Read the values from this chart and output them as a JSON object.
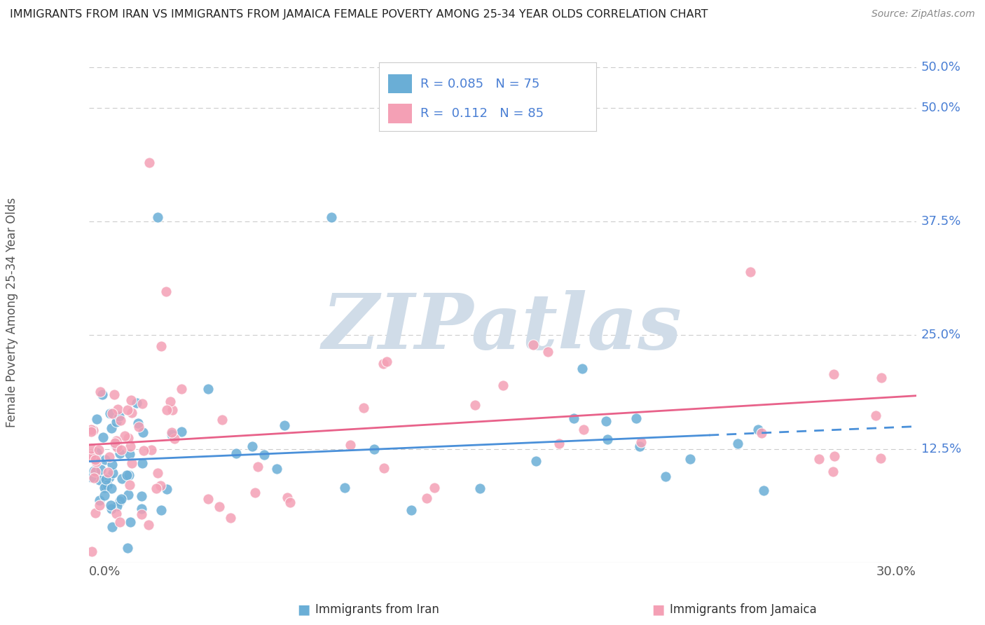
{
  "title": "IMMIGRANTS FROM IRAN VS IMMIGRANTS FROM JAMAICA FEMALE POVERTY AMONG 25-34 YEAR OLDS CORRELATION CHART",
  "source": "Source: ZipAtlas.com",
  "ylabel": "Female Poverty Among 25-34 Year Olds",
  "xlabel_iran": "Immigrants from Iran",
  "xlabel_jamaica": "Immigrants from Jamaica",
  "xlim": [
    0.0,
    0.3
  ],
  "ylim": [
    0.0,
    0.55
  ],
  "yticks": [
    0.125,
    0.25,
    0.375,
    0.5
  ],
  "ytick_labels": [
    "12.5%",
    "25.0%",
    "37.5%",
    "50.0%"
  ],
  "xtick_labels": [
    "0.0%",
    "30.0%"
  ],
  "color_iran": "#6aaed6",
  "color_jamaica": "#f4a0b5",
  "color_iran_line": "#4a90d9",
  "color_jamaica_line": "#e8628a",
  "R_iran": 0.085,
  "N_iran": 75,
  "R_jamaica": 0.112,
  "N_jamaica": 85,
  "background_color": "#ffffff",
  "grid_color": "#cccccc",
  "watermark": "ZIPatlas",
  "watermark_color": "#d0dce8",
  "label_color": "#4a7fd4",
  "text_color": "#555555"
}
